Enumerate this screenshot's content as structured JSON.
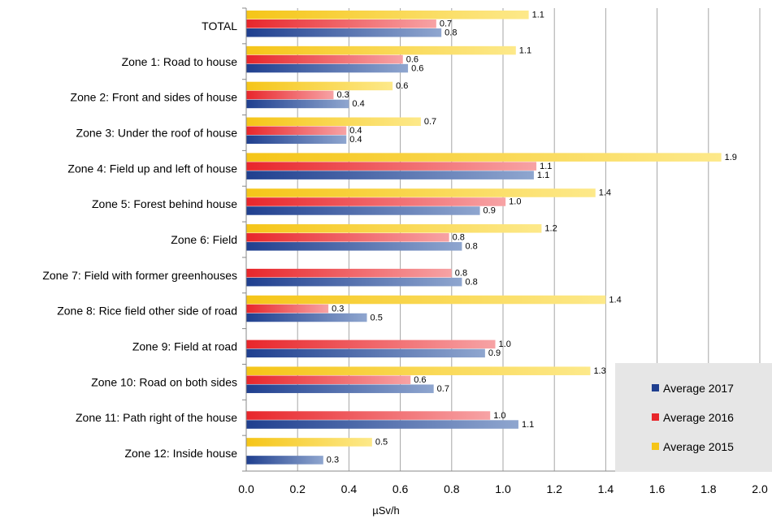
{
  "chart_data": {
    "type": "bar",
    "orientation": "horizontal",
    "title": "",
    "xlabel": "µSv/h",
    "ylabel": "",
    "xlim": [
      0,
      2.0
    ],
    "xticks": [
      "0.0",
      "0.2",
      "0.4",
      "0.6",
      "0.8",
      "1.0",
      "1.2",
      "1.4",
      "1.6",
      "1.8",
      "2.0"
    ],
    "grid": true,
    "legend_position": "bottom-right",
    "categories": [
      "TOTAL",
      "Zone 1: Road to house",
      "Zone 2: Front and sides of house",
      "Zone 3: Under the roof of house",
      "Zone 4: Field up and left of house",
      "Zone 5: Forest behind house",
      "Zone 6: Field",
      "Zone 7: Field with former greenhouses",
      "Zone 8: Rice field other side of road",
      "Zone 9: Field at road",
      "Zone 10: Road on both sides",
      "Zone 11: Path right of the house",
      "Zone 12: Inside house"
    ],
    "series": [
      {
        "name": "Average 2015",
        "color": "#f5c518",
        "values": [
          1.1,
          1.05,
          0.57,
          0.68,
          1.85,
          1.36,
          1.15,
          null,
          1.4,
          null,
          1.34,
          null,
          0.49
        ],
        "labels": [
          "1.1",
          "1.1",
          "0.6",
          "0.7",
          "1.9",
          "1.4",
          "1.2",
          "",
          "1.4",
          "",
          "1.3",
          "",
          "0.5"
        ]
      },
      {
        "name": "Average 2016",
        "color": "#e8262b",
        "values": [
          0.74,
          0.61,
          0.34,
          0.39,
          1.13,
          1.01,
          0.79,
          0.8,
          0.32,
          0.97,
          0.64,
          0.95,
          null
        ],
        "labels": [
          "0.7",
          "0.6",
          "0.3",
          "0.4",
          "1.1",
          "1.0",
          "0.8",
          "0.8",
          "0.3",
          "1.0",
          "0.6",
          "1.0",
          ""
        ]
      },
      {
        "name": "Average 2017",
        "color": "#1f3f8f",
        "values": [
          0.76,
          0.63,
          0.4,
          0.39,
          1.12,
          0.91,
          0.84,
          0.84,
          0.47,
          0.93,
          0.73,
          1.06,
          0.3
        ],
        "labels": [
          "0.8",
          "0.6",
          "0.4",
          "0.4",
          "1.1",
          "0.9",
          "0.8",
          "0.8",
          "0.5",
          "0.9",
          "0.7",
          "1.1",
          "0.3"
        ]
      }
    ],
    "legend": [
      {
        "name": "Average 2017",
        "color": "#1f3f8f"
      },
      {
        "name": "Average 2016",
        "color": "#e8262b"
      },
      {
        "name": "Average 2015",
        "color": "#f5c518"
      }
    ]
  }
}
